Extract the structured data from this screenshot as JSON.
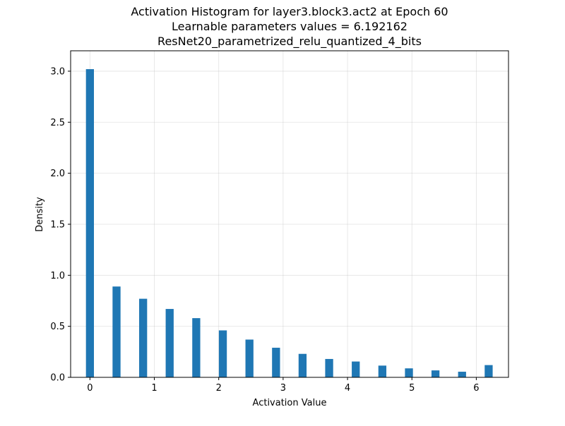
{
  "chart_data": {
    "type": "bar",
    "title_lines": [
      "Activation Histogram for layer3.block3.act2 at Epoch 60",
      "Learnable parameters values = 6.192162",
      "ResNet20_parametrized_relu_quantized_4_bits"
    ],
    "xlabel": "Activation Value",
    "ylabel": "Density",
    "xlim": [
      -0.3,
      6.5
    ],
    "ylim": [
      0,
      3.2
    ],
    "xticks": [
      0,
      1,
      2,
      3,
      4,
      5,
      6
    ],
    "xtick_labels": [
      "0",
      "1",
      "2",
      "3",
      "4",
      "5",
      "6"
    ],
    "yticks": [
      0.0,
      0.5,
      1.0,
      1.5,
      2.0,
      2.5,
      3.0
    ],
    "ytick_labels": [
      "0.0",
      "0.5",
      "1.0",
      "1.5",
      "2.0",
      "2.5",
      "3.0"
    ],
    "grid": true,
    "bar_width": 0.124,
    "bar_color": "#1f77b4",
    "x": [
      0.0,
      0.413,
      0.826,
      1.238,
      1.651,
      2.064,
      2.477,
      2.89,
      3.302,
      3.715,
      4.128,
      4.541,
      4.954,
      5.366,
      5.779,
      6.192
    ],
    "values": [
      3.02,
      0.89,
      0.77,
      0.67,
      0.58,
      0.46,
      0.37,
      0.29,
      0.23,
      0.18,
      0.155,
      0.115,
      0.088,
      0.068,
      0.055,
      0.12
    ]
  }
}
